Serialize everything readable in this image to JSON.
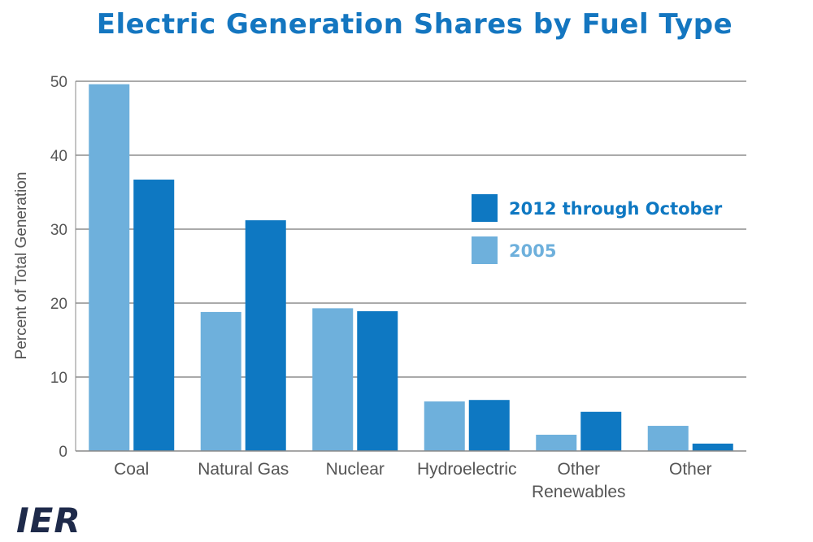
{
  "chart_data": {
    "type": "bar",
    "title": "Electric Generation Shares by Fuel Type",
    "xlabel": "",
    "ylabel": "Percent of Total Generation",
    "ylim": [
      0,
      50
    ],
    "yticks": [
      0,
      10,
      20,
      30,
      40,
      50
    ],
    "grid": true,
    "legend_position": "top-right",
    "categories": [
      [
        "Coal"
      ],
      [
        "Natural Gas"
      ],
      [
        "Nuclear"
      ],
      [
        "Hydroelectric"
      ],
      [
        "Other",
        "Renewables"
      ],
      [
        "Other"
      ]
    ],
    "series": [
      {
        "name": "2005",
        "color": "#6eb0dc",
        "values": [
          49.6,
          18.8,
          19.3,
          6.7,
          2.2,
          3.4
        ]
      },
      {
        "name": "2012 through October",
        "color": "#0e78c2",
        "values": [
          36.7,
          31.2,
          18.9,
          6.9,
          5.3,
          1.0
        ]
      }
    ],
    "legend": [
      {
        "label": "2012 through October",
        "color": "#0e78c2"
      },
      {
        "label": "2005",
        "color": "#6eb0dc"
      }
    ]
  },
  "logo": {
    "text": "IER"
  }
}
